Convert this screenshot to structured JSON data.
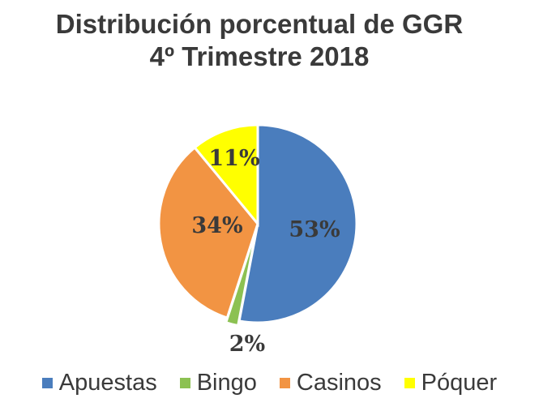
{
  "chart_data": {
    "type": "pie",
    "title": "Distribución porcentual de GGR",
    "subtitle": "4º Trimestre 2018",
    "categories": [
      "Apuestas",
      "Bingo",
      "Casinos",
      "Póquer"
    ],
    "values": [
      53,
      2,
      34,
      11
    ],
    "data_labels": [
      "53%",
      "2%",
      "34%",
      "11%"
    ],
    "colors": [
      "#4a7dbd",
      "#8cc152",
      "#f29443",
      "#ffff00"
    ],
    "legend_position": "bottom"
  }
}
